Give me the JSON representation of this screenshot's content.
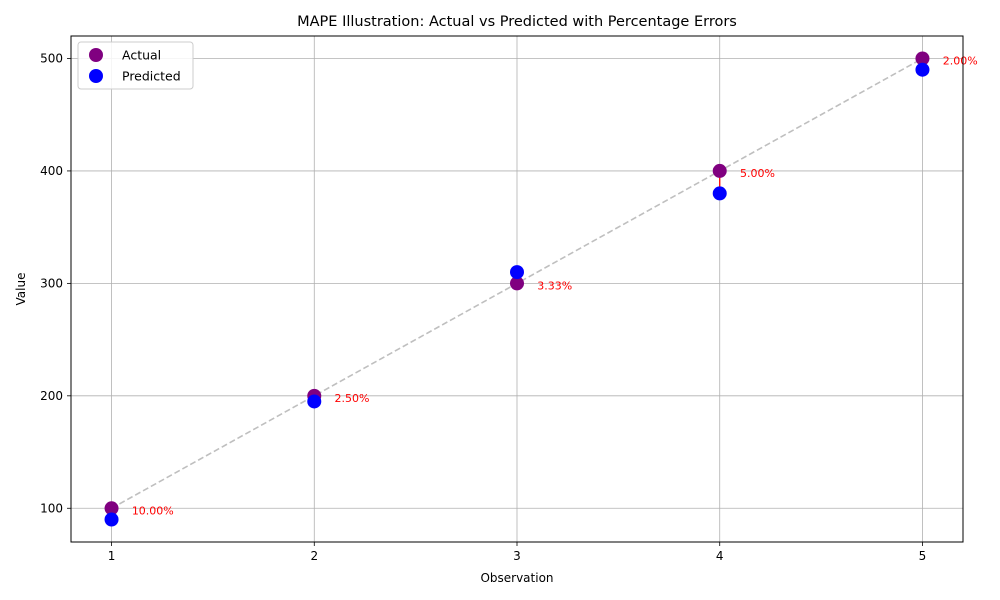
{
  "chart_data": {
    "type": "scatter",
    "title": "MAPE Illustration: Actual vs Predicted with Percentage Errors",
    "xlabel": "Observation",
    "ylabel": "Value",
    "x": [
      1,
      2,
      3,
      4,
      5
    ],
    "x_ticks": [
      "1",
      "2",
      "3",
      "4",
      "5"
    ],
    "y_ticks": [
      "100",
      "200",
      "300",
      "400",
      "500"
    ],
    "xlim": [
      0.8,
      5.2
    ],
    "ylim": [
      70,
      520
    ],
    "grid": true,
    "legend_position": "top-left",
    "series": [
      {
        "name": "Actual",
        "values": [
          100,
          200,
          300,
          400,
          500
        ],
        "color": "#800080"
      },
      {
        "name": "Predicted",
        "values": [
          90,
          195,
          310,
          380,
          490
        ],
        "color": "#0000ff"
      }
    ],
    "reference_line": {
      "style": "dashed",
      "color": "#bfbfbf",
      "values": [
        100,
        200,
        300,
        400,
        500
      ]
    },
    "error_lines_color": "#ff0000",
    "annotations": [
      "10.00%",
      "2.50%",
      "3.33%",
      "5.00%",
      "2.00%"
    ],
    "annotation_color": "#ff0000"
  }
}
